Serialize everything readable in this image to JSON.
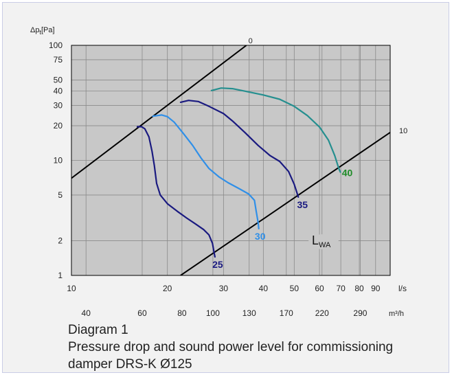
{
  "chart_data": {
    "type": "line",
    "title": "",
    "xlabel": "",
    "ylabel": "Δp_t[Pa]",
    "x_scale": "log",
    "y_scale": "log",
    "xlim": [
      10,
      100
    ],
    "ylim": [
      1,
      100
    ],
    "grid": true,
    "background": "#c8c8c8",
    "x_ticks_ls": [
      "10",
      "20",
      "30",
      "40",
      "50",
      "60",
      "70",
      "80",
      "90"
    ],
    "x_unit_ls": "l/s",
    "x_ticks_m3h": [
      {
        "label": "40",
        "ls": 11.11
      },
      {
        "label": "60",
        "ls": 16.67
      },
      {
        "label": "80",
        "ls": 22.22
      },
      {
        "label": "100",
        "ls": 27.78
      },
      {
        "label": "130",
        "ls": 36.11
      },
      {
        "label": "170",
        "ls": 47.22
      },
      {
        "label": "220",
        "ls": 61.11
      },
      {
        "label": "290",
        "ls": 80.56
      }
    ],
    "x_unit_m3h": "m³/h",
    "y_ticks": [
      "1",
      "2",
      "5",
      "10",
      "20",
      "30",
      "40",
      "50",
      "75",
      "100"
    ],
    "reference_lines": [
      {
        "label": "0",
        "points": [
          [
            10,
            7
          ],
          [
            35.4,
            100
          ]
        ]
      },
      {
        "label": "10",
        "points": [
          [
            22.0,
            1
          ],
          [
            100,
            17.5
          ]
        ]
      }
    ],
    "lwa_label": {
      "main": "L",
      "sub": "WA"
    },
    "series": [
      {
        "name": "25",
        "color": "#1a1a80",
        "points": [
          [
            16.1,
            19.6
          ],
          [
            16.6,
            19.6
          ],
          [
            17.0,
            18.8
          ],
          [
            17.5,
            16
          ],
          [
            17.9,
            12
          ],
          [
            18.2,
            9
          ],
          [
            18.5,
            6.3
          ],
          [
            19.0,
            5.0
          ],
          [
            20.0,
            4.2
          ],
          [
            21.5,
            3.6
          ],
          [
            23.0,
            3.15
          ],
          [
            24.5,
            2.8
          ],
          [
            26.0,
            2.5
          ],
          [
            27.0,
            2.25
          ],
          [
            27.7,
            1.9
          ],
          [
            28.0,
            1.6
          ],
          [
            28.2,
            1.45
          ]
        ]
      },
      {
        "name": "30",
        "color": "#2f8fe8",
        "points": [
          [
            18.0,
            24.2
          ],
          [
            19.2,
            24.8
          ],
          [
            20.0,
            24.0
          ],
          [
            21.0,
            21.5
          ],
          [
            22.5,
            17
          ],
          [
            24.0,
            13.5
          ],
          [
            25.5,
            10.5
          ],
          [
            27.0,
            8.5
          ],
          [
            29.0,
            7.2
          ],
          [
            31.0,
            6.4
          ],
          [
            33.5,
            5.7
          ],
          [
            36.0,
            5.1
          ],
          [
            37.5,
            4.5
          ],
          [
            38.0,
            3.6
          ],
          [
            38.5,
            2.9
          ],
          [
            38.7,
            2.55
          ]
        ]
      },
      {
        "name": "35",
        "color": "#1a1a80",
        "points": [
          [
            22.0,
            32
          ],
          [
            23.3,
            33.2
          ],
          [
            25.0,
            32.5
          ],
          [
            27.0,
            29.5
          ],
          [
            30.0,
            25.5
          ],
          [
            32.0,
            22
          ],
          [
            35.0,
            17.5
          ],
          [
            38.5,
            13.5
          ],
          [
            42.0,
            11
          ],
          [
            45.0,
            9.8
          ],
          [
            48.0,
            8.0
          ],
          [
            50.0,
            6.2
          ],
          [
            51.5,
            4.8
          ]
        ]
      },
      {
        "name": "40",
        "color": "#258f8f",
        "points": [
          [
            27.5,
            40.5
          ],
          [
            29.5,
            42.5
          ],
          [
            32.0,
            42.0
          ],
          [
            35.0,
            40
          ],
          [
            40.0,
            37
          ],
          [
            45.0,
            34
          ],
          [
            50.0,
            29.5
          ],
          [
            55.0,
            24.5
          ],
          [
            60.0,
            19.5
          ],
          [
            64.0,
            15
          ],
          [
            67.0,
            11
          ],
          [
            69.0,
            8.5
          ],
          [
            69.8,
            7.9
          ]
        ]
      }
    ],
    "series_label_colors": {
      "25": "#1a1a80",
      "30": "#2f8fe8",
      "35": "#1a1a80",
      "40": "#1f8c28"
    }
  },
  "caption": {
    "line1": "Diagram 1",
    "line2": "Pressure drop and sound power level for commissioning",
    "line3": "damper DRS-K Ø125"
  }
}
